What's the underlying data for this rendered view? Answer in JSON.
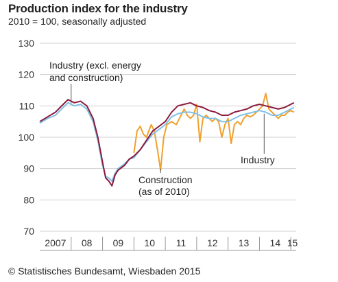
{
  "chart_data": {
    "type": "line",
    "title": "Production index for the industry",
    "subtitle": "2010 = 100, seasonally adjusted",
    "source": "© Statistisches Bundesamt, Wiesbaden 2015",
    "ylim": [
      70,
      130
    ],
    "yticks": [
      70,
      80,
      90,
      100,
      110,
      120,
      130
    ],
    "grid": true,
    "x_start": 2007.0,
    "x_end": 2015.17,
    "x_tick_labels": [
      {
        "label": "2007",
        "x": 2007.5
      },
      {
        "label": "08",
        "x": 2008.5
      },
      {
        "label": "09",
        "x": 2009.5
      },
      {
        "label": "10",
        "x": 2010.5
      },
      {
        "label": "11",
        "x": 2011.5
      },
      {
        "label": "12",
        "x": 2012.5
      },
      {
        "label": "13",
        "x": 2013.5
      },
      {
        "label": "14",
        "x": 2014.5
      },
      {
        "label": "15",
        "x": 2015.05
      }
    ],
    "x_year_boundaries": [
      2008,
      2009,
      2010,
      2011,
      2012,
      2013,
      2014,
      2015
    ],
    "series": [
      {
        "name": "Industry (excl. energy and construction)",
        "color": "#8b1a3c",
        "points": [
          [
            2007.0,
            105
          ],
          [
            2007.25,
            106.5
          ],
          [
            2007.5,
            108
          ],
          [
            2007.75,
            110.5
          ],
          [
            2007.9,
            112
          ],
          [
            2008.1,
            111
          ],
          [
            2008.3,
            111.5
          ],
          [
            2008.5,
            110
          ],
          [
            2008.7,
            106
          ],
          [
            2008.85,
            100
          ],
          [
            2009.0,
            92
          ],
          [
            2009.1,
            87
          ],
          [
            2009.2,
            86
          ],
          [
            2009.3,
            84.5
          ],
          [
            2009.4,
            88
          ],
          [
            2009.5,
            89.5
          ],
          [
            2009.7,
            91
          ],
          [
            2009.85,
            93
          ],
          [
            2010.0,
            94
          ],
          [
            2010.2,
            96
          ],
          [
            2010.4,
            99
          ],
          [
            2010.6,
            102
          ],
          [
            2010.8,
            103.5
          ],
          [
            2011.0,
            105
          ],
          [
            2011.2,
            108
          ],
          [
            2011.4,
            110
          ],
          [
            2011.6,
            110.5
          ],
          [
            2011.8,
            111
          ],
          [
            2012.0,
            110
          ],
          [
            2012.2,
            109.5
          ],
          [
            2012.4,
            108.5
          ],
          [
            2012.6,
            108
          ],
          [
            2012.8,
            107
          ],
          [
            2013.0,
            107
          ],
          [
            2013.2,
            108
          ],
          [
            2013.4,
            108.5
          ],
          [
            2013.6,
            109
          ],
          [
            2013.8,
            110
          ],
          [
            2014.0,
            110.5
          ],
          [
            2014.2,
            110
          ],
          [
            2014.4,
            109.5
          ],
          [
            2014.6,
            109
          ],
          [
            2014.8,
            109.5
          ],
          [
            2015.0,
            110.5
          ],
          [
            2015.1,
            111
          ]
        ]
      },
      {
        "name": "Industry",
        "color": "#7fc0e6",
        "points": [
          [
            2007.0,
            104.5
          ],
          [
            2007.25,
            106
          ],
          [
            2007.5,
            107
          ],
          [
            2007.75,
            109.5
          ],
          [
            2007.9,
            111
          ],
          [
            2008.1,
            110
          ],
          [
            2008.3,
            110.5
          ],
          [
            2008.5,
            109
          ],
          [
            2008.7,
            105
          ],
          [
            2008.85,
            99
          ],
          [
            2009.0,
            91
          ],
          [
            2009.1,
            87.5
          ],
          [
            2009.2,
            87
          ],
          [
            2009.3,
            86
          ],
          [
            2009.4,
            88.5
          ],
          [
            2009.5,
            90
          ],
          [
            2009.7,
            91.5
          ],
          [
            2009.85,
            93
          ],
          [
            2010.0,
            93.5
          ],
          [
            2010.2,
            96
          ],
          [
            2010.4,
            98.5
          ],
          [
            2010.6,
            101
          ],
          [
            2010.8,
            102.5
          ],
          [
            2011.0,
            104
          ],
          [
            2011.2,
            106.5
          ],
          [
            2011.4,
            107.5
          ],
          [
            2011.6,
            108
          ],
          [
            2011.8,
            108
          ],
          [
            2012.0,
            107.5
          ],
          [
            2012.2,
            106.5
          ],
          [
            2012.4,
            106
          ],
          [
            2012.6,
            106
          ],
          [
            2012.8,
            105
          ],
          [
            2013.0,
            105
          ],
          [
            2013.2,
            106
          ],
          [
            2013.4,
            107
          ],
          [
            2013.6,
            107.5
          ],
          [
            2013.8,
            108
          ],
          [
            2014.0,
            108.5
          ],
          [
            2014.2,
            108
          ],
          [
            2014.4,
            107
          ],
          [
            2014.6,
            107
          ],
          [
            2014.8,
            108
          ],
          [
            2015.0,
            109
          ],
          [
            2015.1,
            109.5
          ]
        ]
      },
      {
        "name": "Construction (as of 2010)",
        "color": "#f0a02c",
        "points": [
          [
            2010.0,
            95
          ],
          [
            2010.1,
            102
          ],
          [
            2010.2,
            103.5
          ],
          [
            2010.3,
            101
          ],
          [
            2010.4,
            100
          ],
          [
            2010.55,
            104
          ],
          [
            2010.65,
            102
          ],
          [
            2010.75,
            96
          ],
          [
            2010.85,
            89.5
          ],
          [
            2010.95,
            100
          ],
          [
            2011.05,
            104
          ],
          [
            2011.2,
            105
          ],
          [
            2011.35,
            104
          ],
          [
            2011.5,
            107
          ],
          [
            2011.6,
            109
          ],
          [
            2011.7,
            107
          ],
          [
            2011.8,
            106
          ],
          [
            2011.9,
            107
          ],
          [
            2012.0,
            110.5
          ],
          [
            2012.1,
            98.5
          ],
          [
            2012.2,
            106
          ],
          [
            2012.3,
            107
          ],
          [
            2012.4,
            106
          ],
          [
            2012.5,
            105
          ],
          [
            2012.6,
            106
          ],
          [
            2012.7,
            105
          ],
          [
            2012.8,
            100
          ],
          [
            2012.9,
            104
          ],
          [
            2013.0,
            106
          ],
          [
            2013.1,
            98
          ],
          [
            2013.2,
            104
          ],
          [
            2013.3,
            105
          ],
          [
            2013.4,
            104
          ],
          [
            2013.5,
            106
          ],
          [
            2013.6,
            107
          ],
          [
            2013.7,
            106.5
          ],
          [
            2013.8,
            107
          ],
          [
            2013.9,
            108
          ],
          [
            2014.0,
            109
          ],
          [
            2014.1,
            110
          ],
          [
            2014.2,
            114
          ],
          [
            2014.3,
            109
          ],
          [
            2014.4,
            108
          ],
          [
            2014.5,
            107
          ],
          [
            2014.6,
            106
          ],
          [
            2014.7,
            107
          ],
          [
            2014.8,
            107
          ],
          [
            2014.9,
            108
          ],
          [
            2015.0,
            108.5
          ],
          [
            2015.1,
            108
          ]
        ]
      }
    ],
    "annotations": [
      {
        "lines": [
          "Industry (excl. energy",
          "and construction)"
        ]
      },
      {
        "lines": [
          "Construction",
          "(as of 2010)"
        ]
      },
      {
        "lines": [
          "Industry"
        ]
      }
    ]
  }
}
